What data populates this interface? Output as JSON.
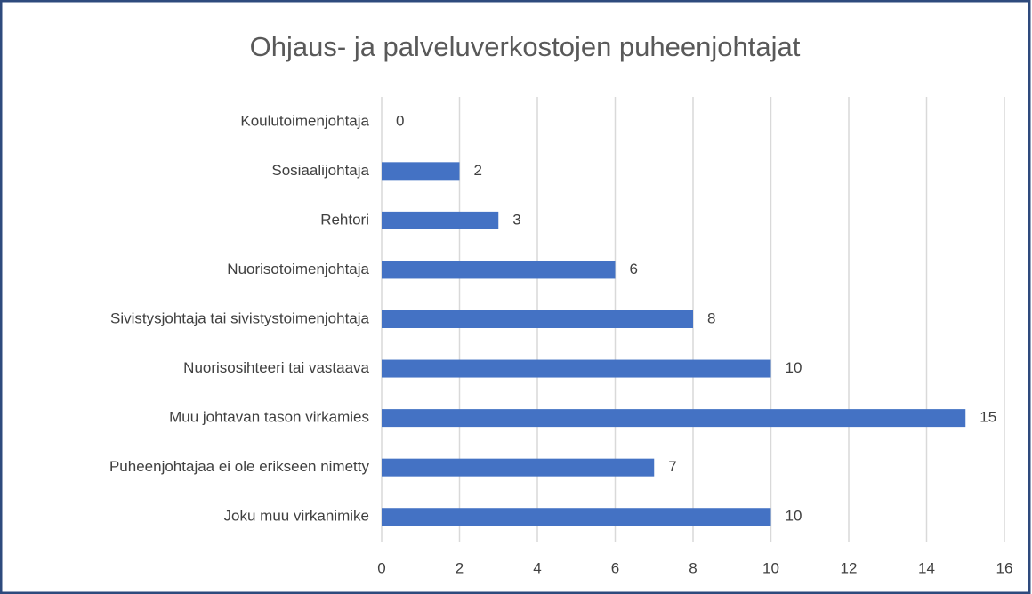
{
  "chart_data": {
    "type": "bar",
    "orientation": "horizontal",
    "title": "Ohjaus- ja palveluverkostojen puheenjohtajat",
    "categories": [
      "Koulutoimenjohtaja",
      "Sosiaalijohtaja",
      "Rehtori",
      "Nuorisotoimenjohtaja",
      "Sivistysjohtaja tai sivistystoimenjohtaja",
      "Nuorisosihteeri tai vastaava",
      "Muu johtavan tason virkamies",
      "Puheenjohtajaa ei ole erikseen nimetty",
      "Joku muu virkanimike"
    ],
    "values": [
      0,
      2,
      3,
      6,
      8,
      10,
      15,
      7,
      10
    ],
    "color": "#4472c4",
    "xlim": [
      0,
      16
    ],
    "xticks": [
      0,
      2,
      4,
      6,
      8,
      10,
      12,
      14,
      16
    ],
    "grid": true
  }
}
